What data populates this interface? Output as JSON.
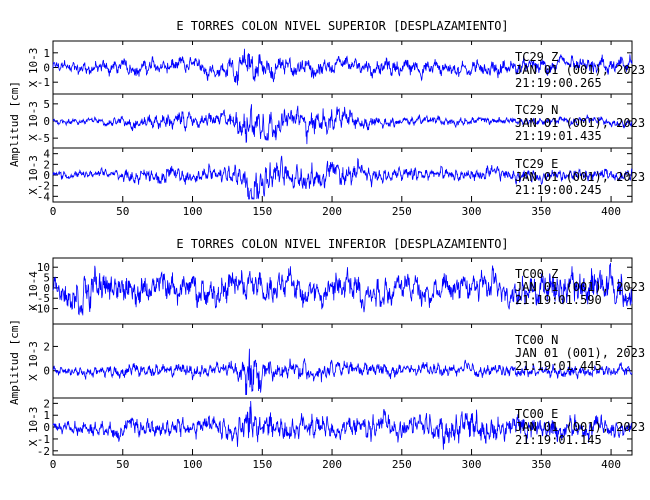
{
  "chart_data": [
    {
      "type": "line",
      "title": "E TORRES COLON NIVEL SUPERIOR [DESPLAZAMIENTO]",
      "ylabel": "Amplitud [cm]",
      "xlim": [
        0,
        415
      ],
      "x_ticks": [
        "0",
        "50",
        "100",
        "150",
        "200",
        "250",
        "300",
        "350",
        "400"
      ],
      "color": "#0000ff",
      "traces": [
        {
          "station": "TC29",
          "component": "Z",
          "date": "JAN 01 (001), 2023",
          "time": "21:19:00.265",
          "scale": "X 10-3",
          "ylim": [
            -1.6,
            1.6
          ],
          "y_ticks": [
            "1",
            "0",
            "-1"
          ],
          "envelope": [
            [
              0,
              0.35
            ],
            [
              40,
              0.45
            ],
            [
              80,
              0.5
            ],
            [
              100,
              0.5
            ],
            [
              120,
              0.55
            ],
            [
              135,
              0.9
            ],
            [
              140,
              1.4
            ],
            [
              150,
              0.9
            ],
            [
              165,
              0.6
            ],
            [
              200,
              0.5
            ],
            [
              260,
              0.5
            ],
            [
              300,
              0.5
            ],
            [
              360,
              0.5
            ],
            [
              415,
              0.55
            ]
          ]
        },
        {
          "station": "TC29",
          "component": "N",
          "date": "JAN 01 (001), 2023",
          "time": "21:19:01.435",
          "scale": "X 10-3",
          "ylim": [
            -7,
            7
          ],
          "y_ticks": [
            "5",
            "0",
            "-5"
          ],
          "envelope": [
            [
              0,
              0.8
            ],
            [
              40,
              0.9
            ],
            [
              60,
              1.8
            ],
            [
              90,
              2.2
            ],
            [
              120,
              2.0
            ],
            [
              135,
              3.2
            ],
            [
              140,
              6.2
            ],
            [
              150,
              4.2
            ],
            [
              165,
              3.2
            ],
            [
              180,
              3.8
            ],
            [
              205,
              3.4
            ],
            [
              240,
              1.3
            ],
            [
              300,
              1.0
            ],
            [
              360,
              1.0
            ],
            [
              415,
              1.0
            ]
          ]
        },
        {
          "station": "TC29",
          "component": "E",
          "date": "JAN 01 (001), 2023",
          "time": "21:19:00.245",
          "scale": "X 10-3",
          "ylim": [
            -4.5,
            4.5
          ],
          "y_ticks": [
            "4",
            "2",
            "0",
            "-2",
            "-4"
          ],
          "envelope": [
            [
              0,
              0.7
            ],
            [
              40,
              0.8
            ],
            [
              80,
              1.4
            ],
            [
              120,
              1.4
            ],
            [
              135,
              2.0
            ],
            [
              140,
              3.8
            ],
            [
              150,
              3.0
            ],
            [
              170,
              2.3
            ],
            [
              200,
              2.0
            ],
            [
              240,
              1.3
            ],
            [
              300,
              1.1
            ],
            [
              360,
              1.0
            ],
            [
              415,
              1.0
            ]
          ]
        }
      ]
    },
    {
      "type": "line",
      "title": "E TORRES COLON NIVEL INFERIOR [DESPLAZAMIENTO]",
      "ylabel": "Amplitud [cm]",
      "xlim": [
        0,
        415
      ],
      "x_ticks": [
        "0",
        "50",
        "100",
        "150",
        "200",
        "250",
        "300",
        "350",
        "400"
      ],
      "color": "#0000ff",
      "traces": [
        {
          "station": "TC00",
          "component": "Z",
          "date": "JAN 01 (001), 2023",
          "time": "21:19:01.590",
          "scale": "X 10-4",
          "ylim": [
            -16,
            13
          ],
          "y_ticks": [
            "10",
            "5",
            "0",
            "-5",
            "-10"
          ],
          "envelope": [
            [
              0,
              5
            ],
            [
              20,
              9
            ],
            [
              60,
              6
            ],
            [
              100,
              6
            ],
            [
              140,
              8
            ],
            [
              160,
              6
            ],
            [
              200,
              8
            ],
            [
              260,
              6
            ],
            [
              300,
              6
            ],
            [
              350,
              7
            ],
            [
              400,
              9
            ],
            [
              415,
              8
            ]
          ]
        },
        {
          "station": "TC00",
          "component": "N",
          "date": "JAN 01 (001), 2023",
          "time": "21:19:01.445",
          "scale": "X 10-3",
          "ylim": [
            -2,
            3.6
          ],
          "y_ticks": [
            "2",
            "0"
          ],
          "envelope": [
            [
              0,
              0.3
            ],
            [
              60,
              0.5
            ],
            [
              120,
              0.55
            ],
            [
              135,
              0.8
            ],
            [
              140,
              2.9
            ],
            [
              150,
              0.8
            ],
            [
              200,
              0.6
            ],
            [
              260,
              0.5
            ],
            [
              320,
              0.45
            ],
            [
              415,
              0.4
            ]
          ]
        },
        {
          "station": "TC00",
          "component": "E",
          "date": "JAN 01 (001), 2023",
          "time": "21:19:01.145",
          "scale": "X 10-3",
          "ylim": [
            -2.1,
            2.2
          ],
          "y_ticks": [
            "2",
            "1",
            "0",
            "-1",
            "-2"
          ],
          "envelope": [
            [
              0,
              0.5
            ],
            [
              60,
              0.7
            ],
            [
              120,
              0.8
            ],
            [
              135,
              1.2
            ],
            [
              140,
              1.9
            ],
            [
              150,
              1.1
            ],
            [
              200,
              0.8
            ],
            [
              260,
              0.9
            ],
            [
              300,
              1.3
            ],
            [
              330,
              1.0
            ],
            [
              415,
              0.7
            ]
          ]
        }
      ]
    }
  ]
}
